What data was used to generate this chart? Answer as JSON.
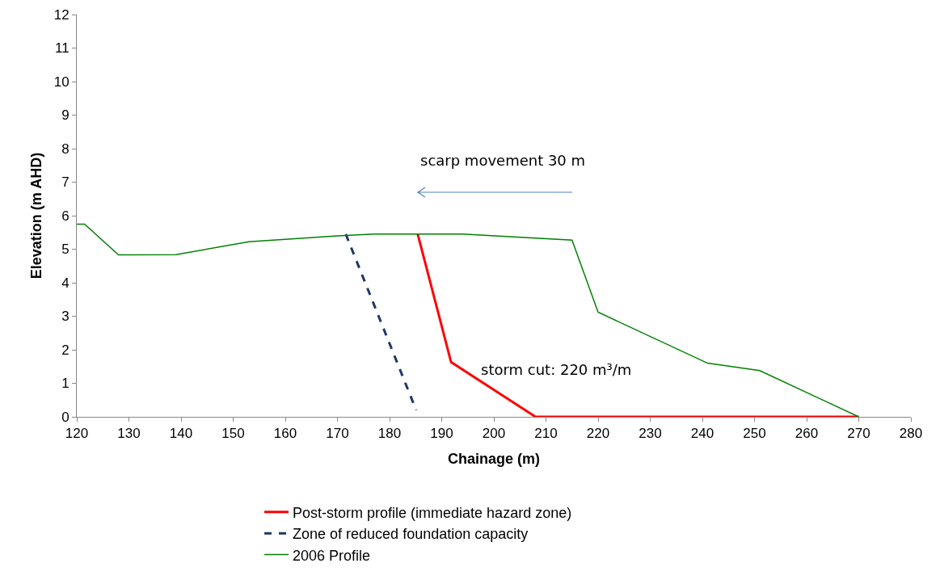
{
  "chart_data": {
    "type": "line",
    "xlabel": "Chainage (m)",
    "ylabel": "Elevation (m AHD)",
    "xlim": [
      120,
      280
    ],
    "xticks": [
      120,
      130,
      140,
      150,
      160,
      170,
      180,
      190,
      200,
      210,
      220,
      230,
      240,
      250,
      260,
      270,
      280
    ],
    "ylim": [
      0,
      12
    ],
    "yticks": [
      0,
      1,
      2,
      3,
      4,
      5,
      6,
      7,
      8,
      9,
      10,
      11,
      12
    ],
    "grid": false,
    "legend": "bottom",
    "marker": "none",
    "series": [
      {
        "name": "Post-storm profile (immediate hazard zone)",
        "color": "#ff0000",
        "line_style": "solid",
        "x": [
          185.4,
          191.8,
          208,
          270
        ],
        "values": [
          5.45,
          1.63,
          0,
          0
        ]
      },
      {
        "name": "Zone of reduced foundation capacity",
        "color": "#1f3864",
        "line_style": "dashed",
        "x": [
          171.6,
          185.1
        ],
        "values": [
          5.45,
          0.2
        ]
      },
      {
        "name": "2006 Profile",
        "color": "#008000",
        "line_style": "solid",
        "x": [
          120,
          121.5,
          128,
          139,
          153,
          170,
          177,
          194,
          215,
          220,
          241,
          251,
          270
        ],
        "values": [
          5.75,
          5.75,
          4.83,
          4.84,
          5.22,
          5.4,
          5.45,
          5.45,
          5.27,
          3.12,
          1.6,
          1.38,
          0
        ]
      }
    ],
    "annotations": [
      "scarp movement 30 m",
      "storm cut: 220 m³/m"
    ]
  }
}
